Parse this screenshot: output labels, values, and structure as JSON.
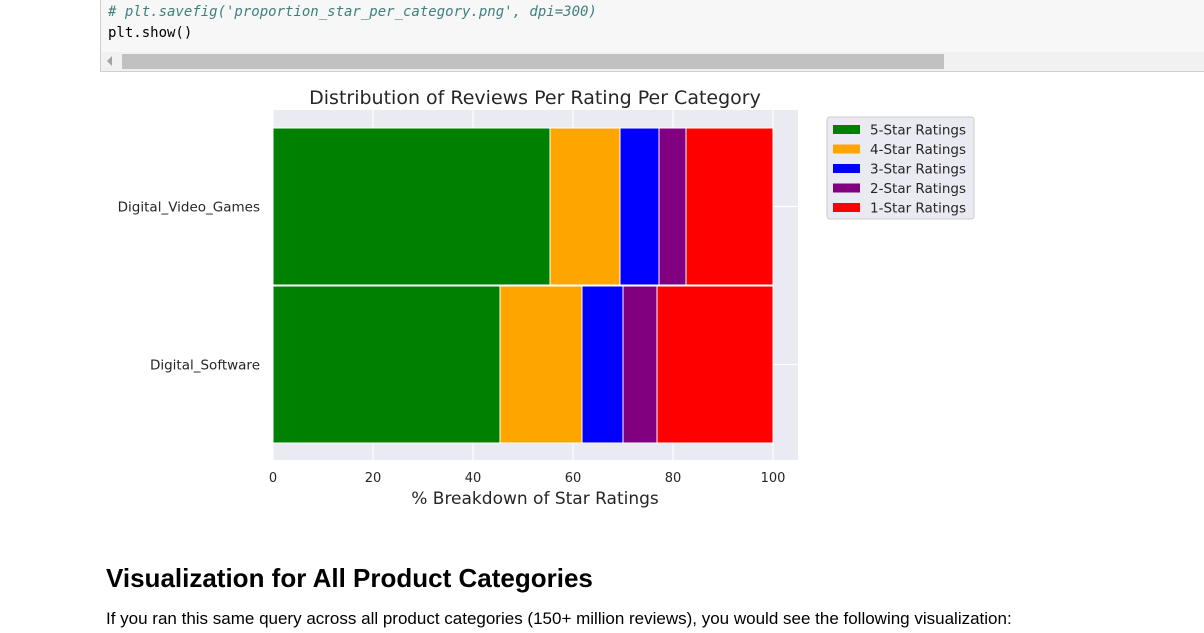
{
  "code": {
    "comment_line": "# plt.savefig('proportion_star_per_category.png', dpi=300)",
    "show_line": "plt.show()"
  },
  "chart_data": {
    "type": "bar",
    "orientation": "horizontal",
    "stacked": true,
    "title": "Distribution of Reviews Per Rating Per Category",
    "xlabel": "% Breakdown of Star Ratings",
    "ylabel": "",
    "xlim": [
      0,
      100
    ],
    "xticks": [
      "0",
      "20",
      "40",
      "60",
      "80",
      "100"
    ],
    "grid": true,
    "legend_position": "outside-right-top",
    "categories": [
      "Digital_Video_Games",
      "Digital_Software"
    ],
    "series": [
      {
        "name": "5-Star Ratings",
        "color": "#008000",
        "values": [
          55.4,
          45.4
        ]
      },
      {
        "name": "4-Star Ratings",
        "color": "#ffa500",
        "values": [
          14.0,
          16.4
        ]
      },
      {
        "name": "3-Star Ratings",
        "color": "#0000ff",
        "values": [
          7.8,
          8.2
        ]
      },
      {
        "name": "2-Star Ratings",
        "color": "#800080",
        "values": [
          5.4,
          6.8
        ]
      },
      {
        "name": "1-Star Ratings",
        "color": "#ff0000",
        "values": [
          17.4,
          23.2
        ]
      }
    ]
  },
  "section": {
    "heading": "Visualization for All Product Categories",
    "paragraph": "If you ran this same query across all product categories (150+ million reviews), you would see the following visualization:"
  }
}
